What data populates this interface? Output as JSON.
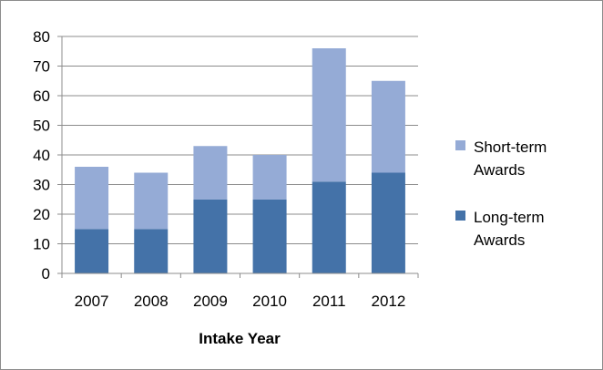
{
  "chart_data": {
    "type": "bar",
    "stacked": true,
    "categories": [
      "2007",
      "2008",
      "2009",
      "2010",
      "2011",
      "2012"
    ],
    "series": [
      {
        "name": "Long-term Awards",
        "values": [
          15,
          15,
          25,
          25,
          31,
          34
        ],
        "color": "#4472a8"
      },
      {
        "name": "Short-term Awards",
        "values": [
          21,
          19,
          18,
          15,
          45,
          31
        ],
        "color": "#95abd6"
      }
    ],
    "xlabel": "Intake Year",
    "ylabel": "",
    "title": "",
    "ylim": [
      0,
      80
    ],
    "yticks": [
      "0",
      "10",
      "20",
      "30",
      "40",
      "50",
      "60",
      "70",
      "80"
    ],
    "grid": true,
    "legend_position": "right",
    "legend": [
      {
        "series": "Short-term Awards",
        "lines": [
          "Short-term",
          "Awards"
        ]
      },
      {
        "series": "Long-term Awards",
        "lines": [
          "Long-term",
          "Awards"
        ]
      }
    ]
  }
}
